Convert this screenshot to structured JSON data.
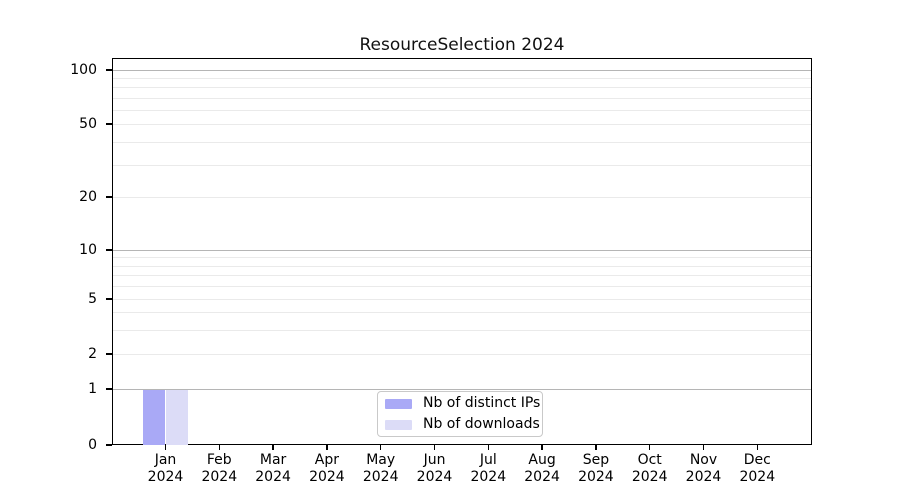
{
  "chart_data": {
    "type": "bar",
    "title": "ResourceSelection 2024",
    "categories": [
      "Jan",
      "Feb",
      "Mar",
      "Apr",
      "May",
      "Jun",
      "Jul",
      "Aug",
      "Sep",
      "Oct",
      "Nov",
      "Dec"
    ],
    "x_year": "2024",
    "series": [
      {
        "name": "Nb of distinct IPs",
        "color": "#a9a9f6",
        "values": [
          1,
          0,
          0,
          0,
          0,
          0,
          0,
          0,
          0,
          0,
          0,
          0
        ]
      },
      {
        "name": "Nb of downloads",
        "color": "#dcdcf7",
        "values": [
          1,
          0,
          0,
          0,
          0,
          0,
          0,
          0,
          0,
          0,
          0,
          0
        ]
      }
    ],
    "y_scale": "symlog",
    "ylim": [
      0,
      115
    ],
    "y_ticks": [
      0,
      1,
      2,
      5,
      10,
      20,
      50,
      100
    ],
    "y_major_gridlines": [
      1,
      10,
      100
    ],
    "y_minor_gridlines": [
      2,
      3,
      4,
      5,
      6,
      7,
      8,
      9,
      20,
      30,
      40,
      50,
      60,
      70,
      80,
      90
    ],
    "legend_position": "lower center",
    "grid": "on"
  },
  "colors": {
    "major_grid": "#b5b5b5",
    "minor_grid": "#eaeaea",
    "spine": "#000000",
    "text": "#000000",
    "background": "#ffffff"
  }
}
